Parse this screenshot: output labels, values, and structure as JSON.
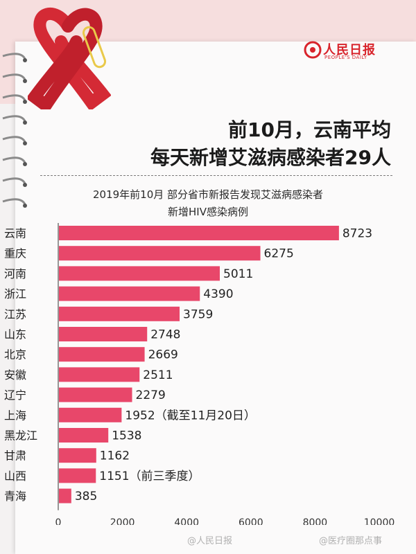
{
  "headline": {
    "line1": "前10月，云南平均",
    "line2": "每天新增艾滋病感染者29人"
  },
  "logo": {
    "name": "人民日报",
    "sub": "PEOPLE'S DAILY"
  },
  "watermarks": [
    "@人民日报",
    "@医疗圈那点事"
  ],
  "colors": {
    "bar": "#e8476a",
    "background": "#f4f2f2",
    "ribbon": "#d42a35"
  },
  "chart_data": {
    "type": "bar",
    "orientation": "horizontal",
    "title": "2019年前10月 部分省市新报告发现艾滋病感染者",
    "subtitle": "新增HIV感染病例",
    "categories": [
      "云南",
      "重庆",
      "河南",
      "浙江",
      "江苏",
      "山东",
      "北京",
      "安徽",
      "辽宁",
      "上海",
      "黑龙江",
      "甘肃",
      "山西",
      "青海"
    ],
    "values": [
      8723,
      6275,
      5011,
      4390,
      3759,
      2748,
      2669,
      2511,
      2279,
      1952,
      1538,
      1162,
      1151,
      385
    ],
    "annotations": [
      "",
      "",
      "",
      "",
      "",
      "",
      "",
      "",
      "",
      "（截至11月20日）",
      "",
      "",
      "（前三季度）",
      ""
    ],
    "xlim": [
      0,
      10000
    ],
    "xticks": [
      0,
      2000,
      4000,
      6000,
      8000,
      10000
    ],
    "grid": false,
    "legend": "none"
  }
}
